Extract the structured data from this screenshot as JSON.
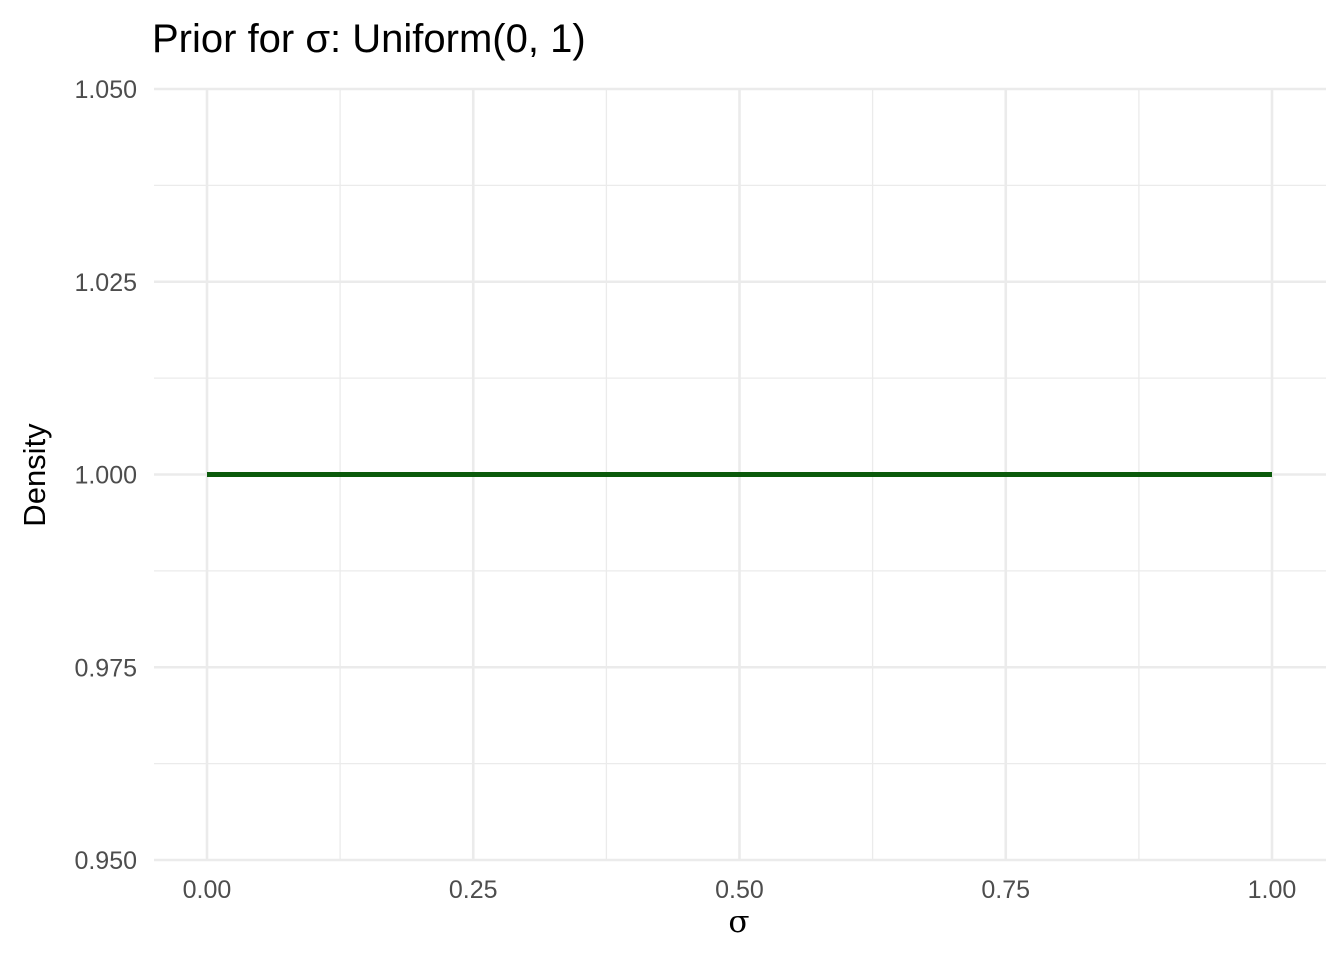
{
  "chart_data": {
    "type": "line",
    "title": "Prior for σ: Uniform(0, 1)",
    "xlabel": "σ",
    "ylabel": "Density",
    "xlim": [
      0,
      1
    ],
    "ylim": [
      0.95,
      1.05
    ],
    "x_ticks": [
      0.0,
      0.25,
      0.5,
      0.75,
      1.0
    ],
    "x_tick_labels": [
      "0.00",
      "0.25",
      "0.50",
      "0.75",
      "1.00"
    ],
    "y_ticks": [
      0.95,
      0.975,
      1.0,
      1.025,
      1.05
    ],
    "y_tick_labels": [
      "0.950",
      "0.975",
      "1.000",
      "1.025",
      "1.050"
    ],
    "grid": true,
    "legend": "none",
    "series": [
      {
        "color": "#0b5a0b",
        "x": [
          0.0,
          0.25,
          0.5,
          0.75,
          1.0
        ],
        "y": [
          1.0,
          1.0,
          1.0,
          1.0,
          1.0
        ]
      }
    ]
  }
}
